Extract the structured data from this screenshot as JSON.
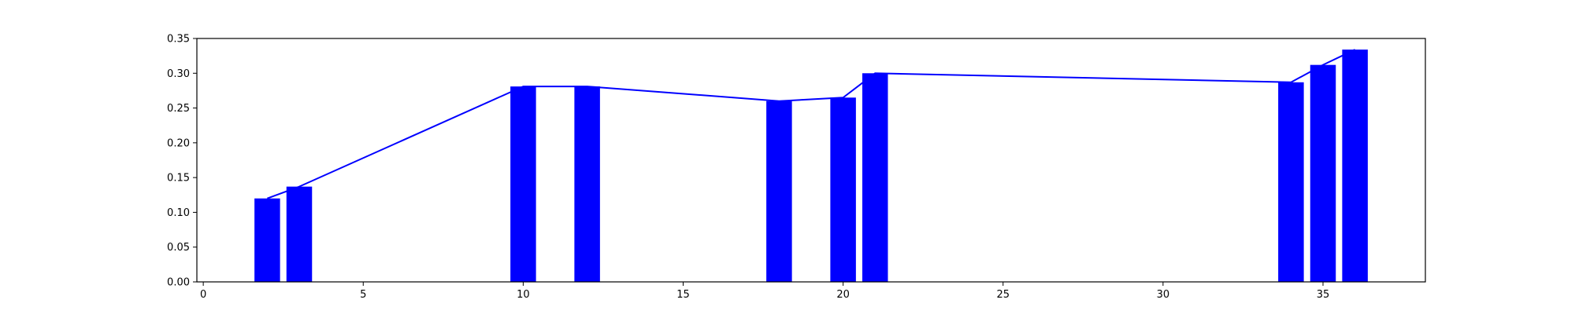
{
  "chart_data": {
    "type": "bar",
    "title": "",
    "xlabel": "",
    "ylabel": "",
    "x": [
      2,
      3,
      10,
      12,
      18,
      20,
      21,
      34,
      35,
      36
    ],
    "values": [
      0.12,
      0.137,
      0.281,
      0.281,
      0.26,
      0.265,
      0.3,
      0.287,
      0.312,
      0.334
    ],
    "line": {
      "x": [
        2,
        3,
        10,
        12,
        18,
        20,
        21,
        34,
        35,
        36
      ],
      "y": [
        0.12,
        0.137,
        0.281,
        0.281,
        0.26,
        0.265,
        0.3,
        0.287,
        0.312,
        0.334
      ]
    },
    "bar_width_data": 0.8,
    "xlim": [
      -0.2,
      38.2
    ],
    "ylim": [
      0,
      0.35
    ],
    "xticks": [
      0,
      5,
      10,
      15,
      20,
      25,
      30,
      35
    ],
    "xtick_labels": [
      "0",
      "5",
      "10",
      "15",
      "20",
      "25",
      "30",
      "35"
    ],
    "yticks": [
      0,
      0.05,
      0.1,
      0.15,
      0.2,
      0.25,
      0.3,
      0.35
    ],
    "ytick_labels": [
      "0.00",
      "0.05",
      "0.10",
      "0.15",
      "0.20",
      "0.25",
      "0.30",
      "0.35"
    ],
    "grid": false,
    "bar_color": "#0000ff",
    "line_color": "#0000ff"
  }
}
